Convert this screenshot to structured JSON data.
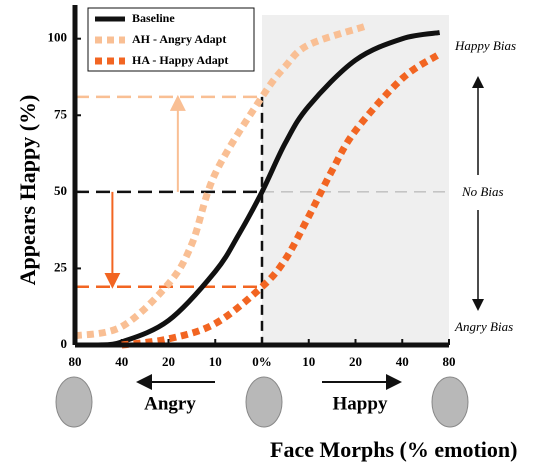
{
  "chart_data": {
    "type": "line",
    "xlabel": "Face Morphs (% emotion)",
    "ylabel": "Appears Happy (%)",
    "xlim": [
      -4,
      4
    ],
    "ylim": [
      0,
      111
    ],
    "xticks": [
      {
        "value": -4,
        "label": "80"
      },
      {
        "value": -3,
        "label": "40"
      },
      {
        "value": -2,
        "label": "20"
      },
      {
        "value": -1,
        "label": "10"
      },
      {
        "value": 0,
        "label": "0%"
      },
      {
        "value": 1,
        "label": "10"
      },
      {
        "value": 2,
        "label": "20"
      },
      {
        "value": 3,
        "label": "40"
      },
      {
        "value": 4,
        "label": "80"
      }
    ],
    "yticks": [
      0,
      25,
      50,
      75,
      100
    ],
    "shaded_region": [
      0,
      4
    ],
    "legend": "upper left",
    "series": [
      {
        "name": "Baseline",
        "color": "#111111",
        "style": "solid",
        "x": [
          -3.5,
          -3,
          -2,
          -1,
          -0.5,
          0,
          0.5,
          1,
          2,
          3,
          3.8
        ],
        "values": [
          0,
          1,
          8,
          24,
          36,
          50,
          66,
          78,
          93,
          100,
          102
        ]
      },
      {
        "name": "AH - Angry Adapt",
        "color": "#f9bf94",
        "style": "dashed",
        "x": [
          -4,
          -3,
          -2,
          -1.5,
          -1,
          0,
          0.5,
          1,
          2.2
        ],
        "values": [
          3,
          6,
          20,
          33,
          56,
          81,
          91,
          98,
          104
        ]
      },
      {
        "name": "HA - Happy Adapt",
        "color": "#f26522",
        "style": "dashed",
        "x": [
          -3,
          -2,
          -1,
          0,
          0.5,
          1,
          1.5,
          2,
          3,
          3.8
        ],
        "values": [
          0,
          2,
          7,
          19,
          28,
          42,
          57,
          70,
          87,
          95
        ]
      }
    ],
    "annotations": [
      "Happy Bias",
      "No Bias",
      "Angry Bias"
    ],
    "direction_labels": [
      "Angry",
      "Happy"
    ]
  }
}
